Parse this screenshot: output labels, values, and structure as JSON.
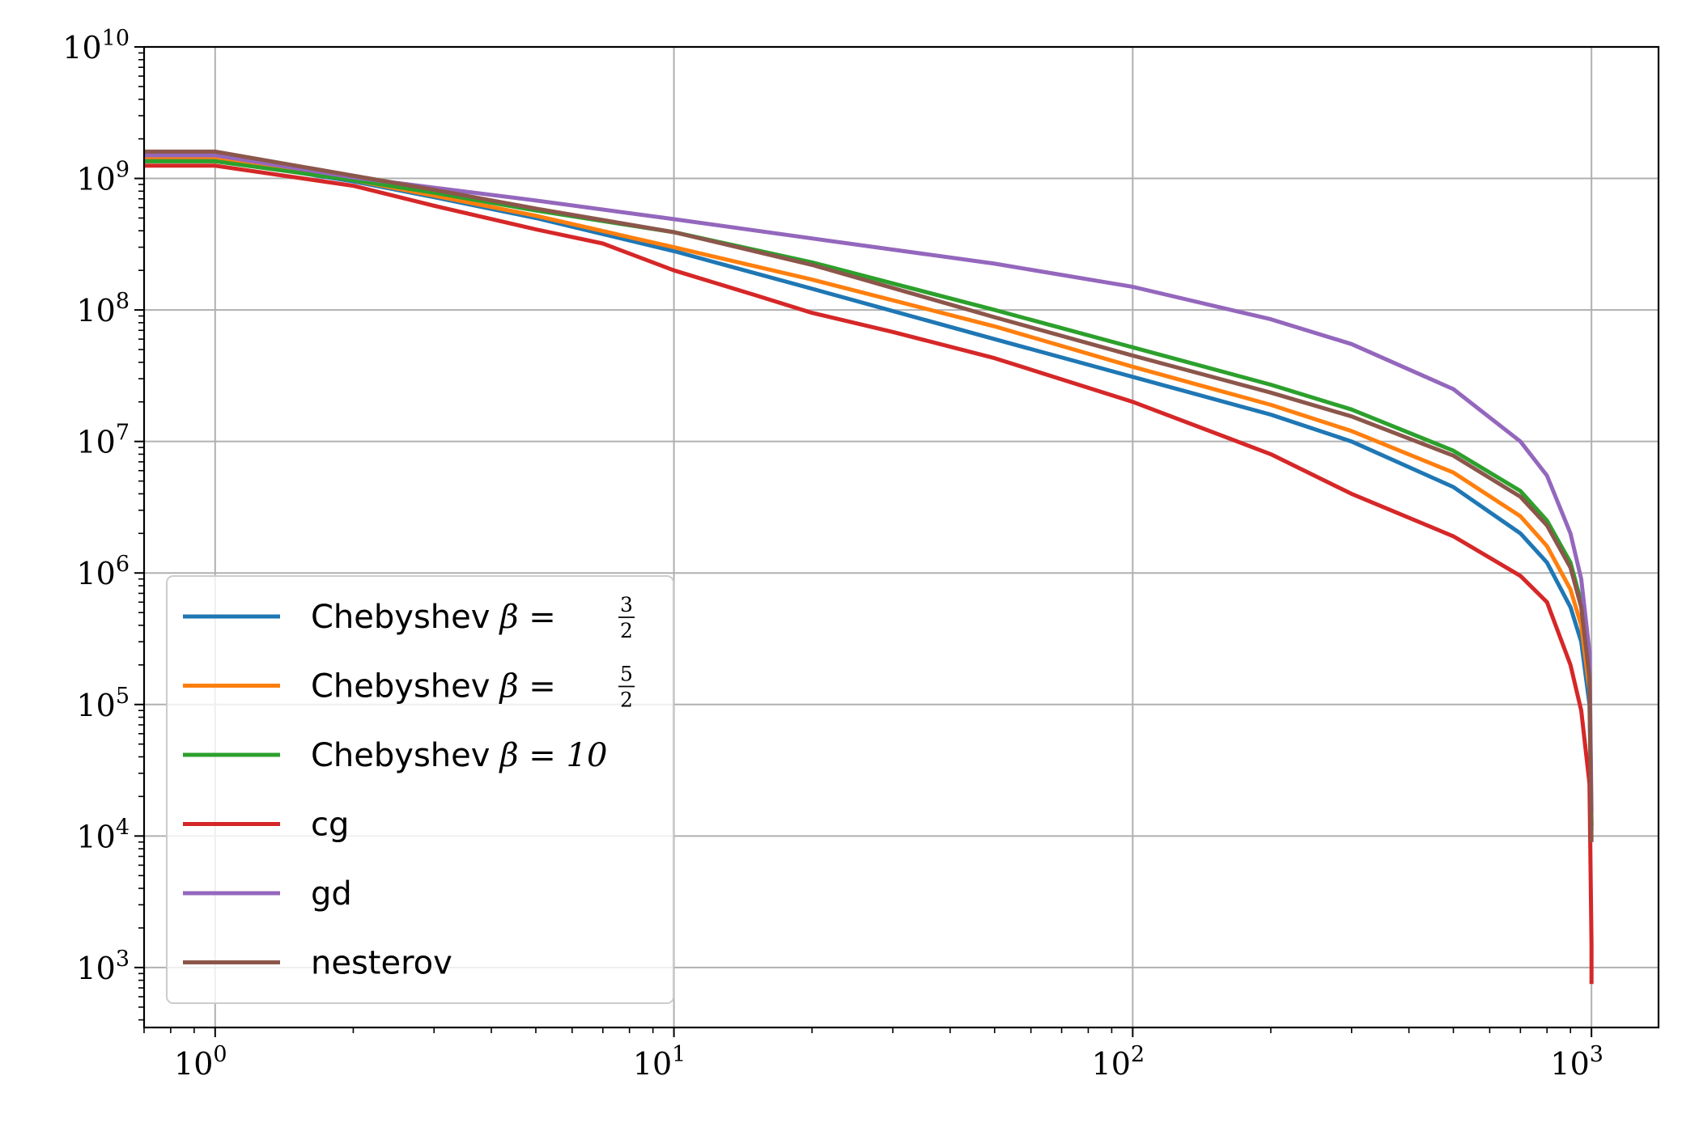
{
  "chart_data": {
    "type": "line",
    "title": "",
    "xlabel": "",
    "ylabel": "",
    "xscale": "log",
    "yscale": "log",
    "xlim": [
      0.7,
      1400
    ],
    "ylim": [
      350,
      10000000000.0
    ],
    "grid": true,
    "legend_position": "lower-left",
    "x_ticks": [
      {
        "value": 1,
        "base": "10",
        "exp": "0"
      },
      {
        "value": 10,
        "base": "10",
        "exp": "1"
      },
      {
        "value": 100,
        "base": "10",
        "exp": "2"
      },
      {
        "value": 1000,
        "base": "10",
        "exp": "3"
      }
    ],
    "y_ticks": [
      {
        "value": 1000,
        "base": "10",
        "exp": "3"
      },
      {
        "value": 10000,
        "base": "10",
        "exp": "4"
      },
      {
        "value": 100000,
        "base": "10",
        "exp": "5"
      },
      {
        "value": 1000000,
        "base": "10",
        "exp": "6"
      },
      {
        "value": 10000000,
        "base": "10",
        "exp": "7"
      },
      {
        "value": 100000000,
        "base": "10",
        "exp": "8"
      },
      {
        "value": 1000000000,
        "base": "10",
        "exp": "9"
      },
      {
        "value": 10000000000,
        "base": "10",
        "exp": "10"
      }
    ],
    "series": [
      {
        "label_text": "Chebyshev",
        "label_math": "β =",
        "label_frac": [
          "3",
          "2"
        ],
        "label_num": "",
        "color": "#1f77b4",
        "points": [
          [
            0.7,
            1400000000.0
          ],
          [
            1,
            1400000000.0
          ],
          [
            2,
            950000000.0
          ],
          [
            3,
            720000000.0
          ],
          [
            5,
            500000000.0
          ],
          [
            10,
            280000000.0
          ],
          [
            20,
            145000000.0
          ],
          [
            50,
            60000000.0
          ],
          [
            100,
            31000000.0
          ],
          [
            200,
            16000000.0
          ],
          [
            300,
            10000000.0
          ],
          [
            500,
            4500000.0
          ],
          [
            700,
            2000000.0
          ],
          [
            800,
            1200000.0
          ],
          [
            900,
            550000.0
          ],
          [
            950,
            300000.0
          ],
          [
            990,
            100000.0
          ],
          [
            1000,
            11000.0
          ]
        ]
      },
      {
        "label_text": "Chebyshev",
        "label_math": "β =",
        "label_frac": [
          "5",
          "2"
        ],
        "label_num": "",
        "color": "#ff7f0e",
        "points": [
          [
            0.7,
            1450000000.0
          ],
          [
            1,
            1450000000.0
          ],
          [
            2,
            970000000.0
          ],
          [
            3,
            740000000.0
          ],
          [
            5,
            520000000.0
          ],
          [
            10,
            300000000.0
          ],
          [
            20,
            170000000.0
          ],
          [
            50,
            75000000.0
          ],
          [
            100,
            37000000.0
          ],
          [
            200,
            19000000.0
          ],
          [
            300,
            12000000.0
          ],
          [
            500,
            5800000.0
          ],
          [
            700,
            2700000.0
          ],
          [
            800,
            1600000.0
          ],
          [
            900,
            750000.0
          ],
          [
            950,
            400000.0
          ],
          [
            990,
            130000.0
          ],
          [
            1000,
            12000.0
          ]
        ]
      },
      {
        "label_text": "Chebyshev",
        "label_math": "β = 10",
        "label_frac": [],
        "label_num": "",
        "color": "#2ca02c",
        "points": [
          [
            0.7,
            1350000000.0
          ],
          [
            1,
            1350000000.0
          ],
          [
            2,
            970000000.0
          ],
          [
            3,
            780000000.0
          ],
          [
            5,
            570000000.0
          ],
          [
            10,
            390000000.0
          ],
          [
            20,
            230000000.0
          ],
          [
            50,
            100000000.0
          ],
          [
            100,
            52000000.0
          ],
          [
            200,
            27000000.0
          ],
          [
            300,
            17500000.0
          ],
          [
            500,
            8500000.0
          ],
          [
            700,
            4200000.0
          ],
          [
            800,
            2500000.0
          ],
          [
            900,
            1200000.0
          ],
          [
            950,
            600000.0
          ],
          [
            990,
            180000.0
          ],
          [
            1000,
            12000.0
          ]
        ]
      },
      {
        "label_text": "cg",
        "label_math": "",
        "label_frac": [],
        "label_num": "",
        "color": "#d62728",
        "points": [
          [
            0.7,
            1250000000.0
          ],
          [
            1,
            1250000000.0
          ],
          [
            2,
            880000000.0
          ],
          [
            3,
            620000000.0
          ],
          [
            5,
            410000000.0
          ],
          [
            7,
            320000000.0
          ],
          [
            10,
            200000000.0
          ],
          [
            15,
            130000000.0
          ],
          [
            20,
            95000000.0
          ],
          [
            30,
            68000000.0
          ],
          [
            50,
            43000000.0
          ],
          [
            100,
            20000000.0
          ],
          [
            200,
            8000000.0
          ],
          [
            300,
            4000000.0
          ],
          [
            500,
            1900000.0
          ],
          [
            700,
            950000.0
          ],
          [
            800,
            600000.0
          ],
          [
            900,
            200000.0
          ],
          [
            950,
            90000.0
          ],
          [
            990,
            25000.0
          ],
          [
            1000,
            1500.0
          ],
          [
            1000,
            750
          ]
        ]
      },
      {
        "label_text": "gd",
        "label_math": "",
        "label_frac": [],
        "label_num": "",
        "color": "#9467bd",
        "points": [
          [
            0.7,
            1500000000.0
          ],
          [
            1,
            1500000000.0
          ],
          [
            2,
            1020000000.0
          ],
          [
            3,
            850000000.0
          ],
          [
            5,
            680000000.0
          ],
          [
            10,
            490000000.0
          ],
          [
            20,
            350000000.0
          ],
          [
            50,
            225000000.0
          ],
          [
            100,
            150000000.0
          ],
          [
            200,
            85000000.0
          ],
          [
            300,
            55000000.0
          ],
          [
            500,
            25000000.0
          ],
          [
            700,
            10000000.0
          ],
          [
            800,
            5500000.0
          ],
          [
            900,
            2000000.0
          ],
          [
            950,
            900000.0
          ],
          [
            990,
            250000.0
          ],
          [
            1000,
            15000.0
          ]
        ]
      },
      {
        "label_text": "nesterov",
        "label_math": "",
        "label_frac": [],
        "label_num": "",
        "color": "#8c564b",
        "points": [
          [
            0.7,
            1600000000.0
          ],
          [
            1,
            1600000000.0
          ],
          [
            2,
            1050000000.0
          ],
          [
            3,
            820000000.0
          ],
          [
            5,
            590000000.0
          ],
          [
            10,
            390000000.0
          ],
          [
            20,
            220000000.0
          ],
          [
            50,
            88000000.0
          ],
          [
            100,
            45000000.0
          ],
          [
            200,
            23500000.0
          ],
          [
            300,
            15500000.0
          ],
          [
            500,
            7800000.0
          ],
          [
            700,
            3800000.0
          ],
          [
            800,
            2300000.0
          ],
          [
            900,
            1100000.0
          ],
          [
            950,
            550000.0
          ],
          [
            990,
            160000.0
          ],
          [
            1000,
            9000.0
          ]
        ]
      }
    ]
  }
}
